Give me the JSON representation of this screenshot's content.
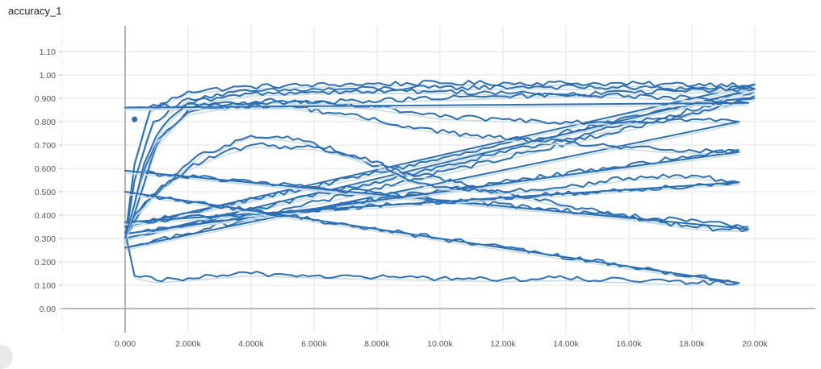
{
  "title": "accuracy_1",
  "colors": {
    "run": "#2d6fb3",
    "smoothed": "#c8dcee",
    "axis": "#9e9e9e",
    "grid": "#e4e4e4"
  },
  "chart_data": {
    "type": "line",
    "title": "accuracy_1",
    "xlabel": "",
    "ylabel": "",
    "xlim": [
      -2000,
      21500
    ],
    "ylim": [
      -0.05,
      1.2
    ],
    "x_ticks": [
      0,
      2000,
      4000,
      6000,
      8000,
      10000,
      12000,
      14000,
      16000,
      18000,
      20000
    ],
    "x_tick_labels": [
      "0.000",
      "2.000k",
      "4.000k",
      "6.000k",
      "8.000k",
      "10.00k",
      "12.00k",
      "14.00k",
      "16.00k",
      "18.00k",
      "20.00k"
    ],
    "y_ticks": [
      0,
      0.1,
      0.2,
      0.3,
      0.4,
      0.5,
      0.6,
      0.7,
      0.8,
      0.9,
      1.0,
      1.1
    ],
    "y_tick_labels": [
      "0.00",
      "0.100",
      "0.200",
      "0.300",
      "0.400",
      "0.500",
      "0.600",
      "0.700",
      "0.800",
      "0.900",
      "1.00",
      "1.10"
    ],
    "grid": true,
    "legend": "none",
    "highlight_point": {
      "x": 300,
      "y": 0.81
    },
    "series": [
      {
        "values": [
          [
            0,
            0.3
          ],
          [
            300,
            0.62
          ],
          [
            800,
            0.85
          ],
          [
            2000,
            0.93
          ],
          [
            4000,
            0.95
          ],
          [
            7000,
            0.96
          ],
          [
            10000,
            0.965
          ],
          [
            14000,
            0.965
          ],
          [
            17000,
            0.96
          ],
          [
            20000,
            0.96
          ],
          [
            0,
            0.35
          ],
          [
            20000,
            0.93
          ]
        ]
      },
      {
        "values": [
          [
            0,
            0.29
          ],
          [
            300,
            0.55
          ],
          [
            900,
            0.8
          ],
          [
            2000,
            0.9
          ],
          [
            4000,
            0.93
          ],
          [
            7000,
            0.94
          ],
          [
            10000,
            0.945
          ],
          [
            13000,
            0.95
          ],
          [
            16000,
            0.945
          ],
          [
            20000,
            0.94
          ],
          [
            0,
            0.3
          ],
          [
            20000,
            0.91
          ]
        ]
      },
      {
        "values": [
          [
            0,
            0.28
          ],
          [
            400,
            0.45
          ],
          [
            1000,
            0.7
          ],
          [
            2000,
            0.85
          ],
          [
            3000,
            0.88
          ],
          [
            5000,
            0.89
          ],
          [
            8000,
            0.86
          ],
          [
            10000,
            0.82
          ],
          [
            12000,
            0.81
          ],
          [
            14000,
            0.8
          ],
          [
            16000,
            0.8
          ],
          [
            18000,
            0.81
          ],
          [
            19500,
            0.8
          ],
          [
            0,
            0.26
          ],
          [
            20000,
            0.9
          ]
        ]
      },
      {
        "values": [
          [
            0,
            0.3
          ],
          [
            500,
            0.42
          ],
          [
            1000,
            0.5
          ],
          [
            1500,
            0.55
          ],
          [
            2000,
            0.62
          ],
          [
            2500,
            0.67
          ],
          [
            3000,
            0.68
          ],
          [
            3500,
            0.72
          ],
          [
            4000,
            0.74
          ],
          [
            5000,
            0.73
          ],
          [
            6000,
            0.71
          ],
          [
            7000,
            0.66
          ],
          [
            8000,
            0.61
          ],
          [
            9000,
            0.58
          ],
          [
            10000,
            0.56
          ],
          [
            11000,
            0.52
          ],
          [
            12000,
            0.49
          ],
          [
            13000,
            0.47
          ],
          [
            14000,
            0.44
          ],
          [
            15000,
            0.42
          ],
          [
            16000,
            0.39
          ],
          [
            17000,
            0.37
          ],
          [
            18000,
            0.35
          ],
          [
            19000,
            0.34
          ],
          [
            19800,
            0.34
          ],
          [
            0,
            0.59
          ],
          [
            19800,
            0.35
          ]
        ]
      },
      {
        "values": [
          [
            0,
            0.29
          ],
          [
            500,
            0.55
          ],
          [
            1000,
            0.72
          ],
          [
            2000,
            0.84
          ],
          [
            3000,
            0.86
          ],
          [
            5000,
            0.87
          ],
          [
            7000,
            0.83
          ],
          [
            9000,
            0.78
          ],
          [
            11000,
            0.74
          ],
          [
            13000,
            0.72
          ],
          [
            15000,
            0.7
          ],
          [
            17000,
            0.68
          ],
          [
            19000,
            0.67
          ],
          [
            19500,
            0.67
          ],
          [
            0,
            0.32
          ],
          [
            19500,
            0.68
          ]
        ]
      },
      {
        "values": [
          [
            0,
            0.3
          ],
          [
            300,
            0.4
          ],
          [
            800,
            0.47
          ],
          [
            1200,
            0.52
          ],
          [
            2000,
            0.6
          ],
          [
            3000,
            0.66
          ],
          [
            4000,
            0.7
          ],
          [
            6000,
            0.69
          ],
          [
            8000,
            0.63
          ],
          [
            9000,
            0.55
          ],
          [
            10000,
            0.52
          ],
          [
            12000,
            0.5
          ],
          [
            14000,
            0.52
          ],
          [
            16000,
            0.56
          ],
          [
            18000,
            0.57
          ],
          [
            19500,
            0.54
          ],
          [
            0,
            0.37
          ],
          [
            19500,
            0.54
          ]
        ]
      },
      {
        "values": [
          [
            0,
            0.33
          ],
          [
            300,
            0.14
          ],
          [
            1000,
            0.12
          ],
          [
            2000,
            0.13
          ],
          [
            4000,
            0.15
          ],
          [
            6000,
            0.14
          ],
          [
            8000,
            0.135
          ],
          [
            10000,
            0.13
          ],
          [
            12000,
            0.125
          ],
          [
            14000,
            0.13
          ],
          [
            16000,
            0.12
          ],
          [
            18000,
            0.11
          ],
          [
            19500,
            0.11
          ],
          [
            0,
            0.5
          ],
          [
            19500,
            0.11
          ]
        ]
      },
      {
        "values": [
          [
            0,
            0.3
          ],
          [
            300,
            0.45
          ],
          [
            600,
            0.62
          ],
          [
            800,
            0.68
          ],
          [
            1200,
            0.78
          ],
          [
            2000,
            0.88
          ],
          [
            4000,
            0.92
          ],
          [
            7000,
            0.93
          ],
          [
            10000,
            0.93
          ],
          [
            13000,
            0.92
          ],
          [
            16000,
            0.91
          ],
          [
            18000,
            0.9
          ],
          [
            19800,
            0.88
          ],
          [
            0,
            0.86
          ],
          [
            19800,
            0.94
          ]
        ]
      }
    ]
  }
}
